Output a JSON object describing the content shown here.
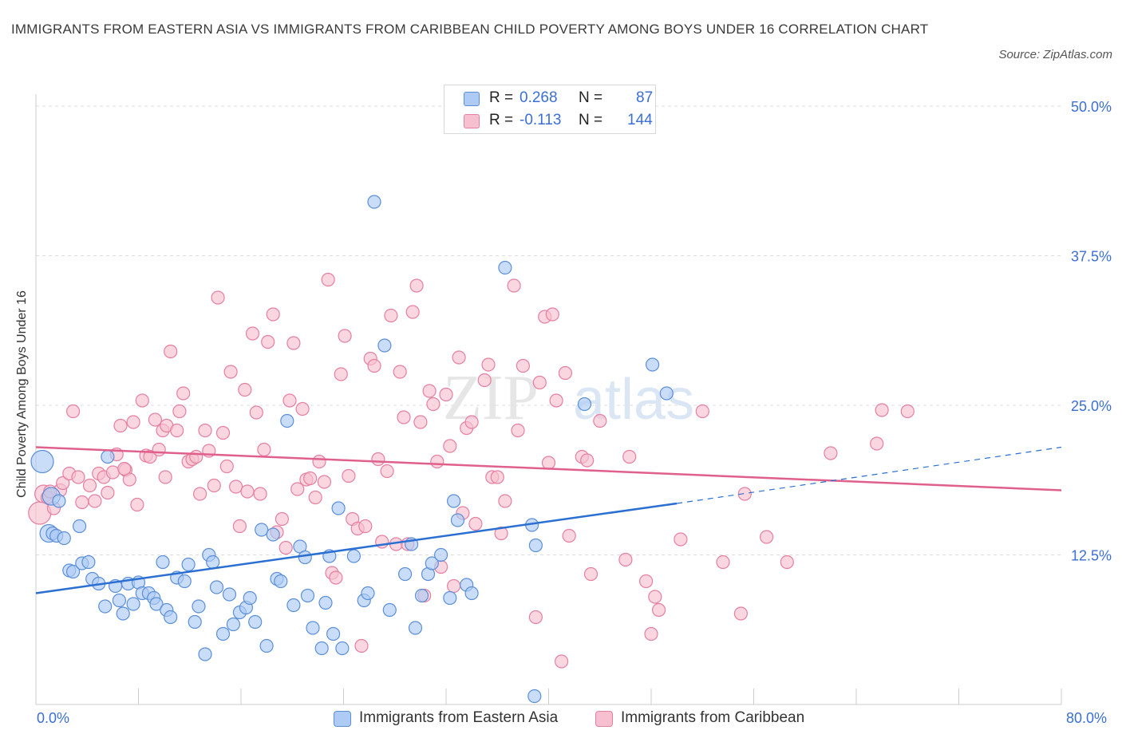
{
  "header": {
    "title": "IMMIGRANTS FROM EASTERN ASIA VS IMMIGRANTS FROM CARIBBEAN CHILD POVERTY AMONG BOYS UNDER 16 CORRELATION CHART",
    "source": "Source: ZipAtlas.com"
  },
  "watermark": {
    "zip": "ZIP",
    "atlas": "atlas"
  },
  "legend": {
    "r_label": "R =",
    "n_label": "N =",
    "series_a": {
      "r": "0.268",
      "n": "87"
    },
    "series_b": {
      "r": "-0.113",
      "n": "144"
    }
  },
  "colors": {
    "blue_fill": "#aecbf5",
    "blue_stroke": "#5b8fd9",
    "blue_line": "#2a6fd1",
    "pink_fill": "#f7c0d0",
    "pink_stroke": "#e67fa0",
    "pink_line": "#e0608c",
    "grid": "#dddddd",
    "axis_text": "#3b6fd6"
  },
  "chart_data": {
    "type": "scatter",
    "title": "IMMIGRANTS FROM EASTERN ASIA VS IMMIGRANTS FROM CARIBBEAN CHILD POVERTY AMONG BOYS UNDER 16 CORRELATION CHART",
    "xlabel": "",
    "ylabel": "Child Poverty Among Boys Under 16",
    "xlim": [
      0,
      80
    ],
    "ylim": [
      0,
      50
    ],
    "x_tick_labels": [
      "0.0%",
      "80.0%"
    ],
    "y_ticks": [
      {
        "value": 12.5,
        "label": "12.5%"
      },
      {
        "value": 25.0,
        "label": "25.0%"
      },
      {
        "value": 37.5,
        "label": "37.5%"
      },
      {
        "value": 50.0,
        "label": "50.0%"
      }
    ],
    "grid": true,
    "series": [
      {
        "name": "Immigrants from Eastern Asia",
        "color": "blue",
        "R": 0.268,
        "N": 87,
        "trend": {
          "x0": 0,
          "y0": 9.3,
          "x1": 50,
          "y1": 16.8,
          "x_end_dashed": 80,
          "y_end_dashed": 21.5
        },
        "points": [
          [
            0.5,
            20.3,
            3
          ],
          [
            1.0,
            14.3,
            2
          ],
          [
            1.2,
            17.4,
            2
          ],
          [
            1.3,
            14.3,
            1
          ],
          [
            1.6,
            14.1,
            1
          ],
          [
            2.2,
            13.9,
            1
          ],
          [
            3.4,
            14.9,
            1
          ],
          [
            2.6,
            11.2,
            1
          ],
          [
            2.9,
            11.1,
            1
          ],
          [
            3.6,
            11.8,
            1
          ],
          [
            4.1,
            11.9,
            1
          ],
          [
            4.4,
            10.5,
            1
          ],
          [
            4.9,
            10.1,
            1
          ],
          [
            5.4,
            8.2,
            1
          ],
          [
            5.6,
            20.7,
            1
          ],
          [
            6.2,
            9.9,
            1
          ],
          [
            6.5,
            8.7,
            1
          ],
          [
            6.8,
            7.6,
            1
          ],
          [
            7.2,
            10.1,
            1
          ],
          [
            7.6,
            8.4,
            1
          ],
          [
            8.0,
            10.2,
            1
          ],
          [
            8.3,
            9.3,
            1
          ],
          [
            8.8,
            9.3,
            1
          ],
          [
            9.2,
            8.9,
            1
          ],
          [
            9.4,
            8.4,
            1
          ],
          [
            9.9,
            11.9,
            1
          ],
          [
            10.2,
            7.9,
            1
          ],
          [
            10.5,
            7.3,
            1
          ],
          [
            11.0,
            10.6,
            1
          ],
          [
            11.6,
            10.3,
            1
          ],
          [
            11.9,
            11.7,
            1
          ],
          [
            12.4,
            6.9,
            1
          ],
          [
            12.7,
            8.2,
            1
          ],
          [
            13.2,
            4.2,
            1
          ],
          [
            13.5,
            12.5,
            1
          ],
          [
            13.8,
            11.9,
            1
          ],
          [
            14.1,
            9.8,
            1
          ],
          [
            14.6,
            5.9,
            1
          ],
          [
            15.1,
            9.2,
            1
          ],
          [
            15.4,
            6.7,
            1
          ],
          [
            15.9,
            7.7,
            1
          ],
          [
            16.4,
            8.1,
            1
          ],
          [
            16.7,
            8.9,
            1
          ],
          [
            17.1,
            6.9,
            1
          ],
          [
            17.6,
            14.6,
            1
          ],
          [
            18.0,
            4.9,
            1
          ],
          [
            18.5,
            14.2,
            1
          ],
          [
            18.8,
            10.5,
            1
          ],
          [
            19.1,
            10.3,
            1
          ],
          [
            19.6,
            23.7,
            1
          ],
          [
            20.1,
            8.3,
            1
          ],
          [
            20.6,
            13.2,
            1
          ],
          [
            21.0,
            12.3,
            1
          ],
          [
            21.2,
            9.1,
            1
          ],
          [
            21.6,
            6.4,
            1
          ],
          [
            22.3,
            4.7,
            1
          ],
          [
            22.6,
            8.5,
            1
          ],
          [
            22.9,
            12.4,
            1
          ],
          [
            23.2,
            5.9,
            1
          ],
          [
            23.6,
            16.4,
            1
          ],
          [
            23.9,
            4.7,
            1
          ],
          [
            24.8,
            12.4,
            1
          ],
          [
            25.6,
            8.7,
            1
          ],
          [
            25.9,
            9.3,
            1
          ],
          [
            26.4,
            42.0,
            1
          ],
          [
            27.2,
            30.0,
            1
          ],
          [
            27.6,
            7.9,
            1
          ],
          [
            28.8,
            10.9,
            1
          ],
          [
            29.3,
            13.4,
            1
          ],
          [
            29.6,
            6.4,
            1
          ],
          [
            30.1,
            9.1,
            1
          ],
          [
            30.6,
            10.9,
            1
          ],
          [
            30.9,
            11.8,
            1
          ],
          [
            31.6,
            12.5,
            1
          ],
          [
            32.3,
            8.9,
            1
          ],
          [
            32.6,
            17.0,
            1
          ],
          [
            32.9,
            15.4,
            1
          ],
          [
            33.6,
            10.0,
            1
          ],
          [
            34.0,
            9.3,
            1
          ],
          [
            36.6,
            36.5,
            1
          ],
          [
            38.7,
            15.0,
            1
          ],
          [
            39.0,
            13.3,
            1
          ],
          [
            38.9,
            0.7,
            1
          ],
          [
            42.8,
            25.1,
            1
          ],
          [
            48.1,
            28.4,
            1
          ],
          [
            49.2,
            26.0,
            1
          ],
          [
            1.8,
            17.0,
            1
          ]
        ]
      },
      {
        "name": "Immigrants from Caribbean",
        "color": "pink",
        "R": -0.113,
        "N": 144,
        "trend": {
          "x0": 0,
          "y0": 21.5,
          "x1": 80,
          "y1": 17.9
        },
        "points": [
          [
            0.3,
            16.0,
            3
          ],
          [
            0.6,
            17.6,
            2
          ],
          [
            0.9,
            17.3,
            1
          ],
          [
            1.4,
            16.4,
            1
          ],
          [
            1.9,
            17.9,
            1
          ],
          [
            2.1,
            18.5,
            1
          ],
          [
            2.6,
            19.3,
            1
          ],
          [
            2.9,
            24.5,
            1
          ],
          [
            3.3,
            19.0,
            1
          ],
          [
            3.6,
            16.9,
            1
          ],
          [
            4.2,
            18.3,
            1
          ],
          [
            4.6,
            17.0,
            1
          ],
          [
            4.9,
            19.3,
            1
          ],
          [
            5.3,
            19.0,
            1
          ],
          [
            5.6,
            17.7,
            1
          ],
          [
            6.0,
            19.4,
            1
          ],
          [
            6.3,
            20.9,
            1
          ],
          [
            6.6,
            23.3,
            1
          ],
          [
            7.0,
            19.6,
            1
          ],
          [
            7.3,
            18.8,
            1
          ],
          [
            7.6,
            23.6,
            1
          ],
          [
            7.9,
            16.7,
            1
          ],
          [
            8.3,
            25.4,
            1
          ],
          [
            8.6,
            20.8,
            1
          ],
          [
            8.9,
            20.7,
            1
          ],
          [
            9.3,
            23.8,
            1
          ],
          [
            9.6,
            21.3,
            1
          ],
          [
            9.9,
            22.9,
            1
          ],
          [
            10.2,
            23.3,
            1
          ],
          [
            10.1,
            19.0,
            1
          ],
          [
            10.5,
            29.5,
            1
          ],
          [
            11.0,
            22.9,
            1
          ],
          [
            11.2,
            24.5,
            1
          ],
          [
            11.5,
            26.0,
            1
          ],
          [
            11.9,
            20.3,
            1
          ],
          [
            12.2,
            20.5,
            1
          ],
          [
            12.5,
            20.7,
            1
          ],
          [
            12.8,
            17.6,
            1
          ],
          [
            13.2,
            22.9,
            1
          ],
          [
            13.5,
            21.2,
            1
          ],
          [
            13.9,
            18.3,
            1
          ],
          [
            14.2,
            34.0,
            1
          ],
          [
            14.6,
            22.7,
            1
          ],
          [
            14.9,
            19.9,
            1
          ],
          [
            15.2,
            27.8,
            1
          ],
          [
            15.6,
            18.2,
            1
          ],
          [
            15.9,
            14.9,
            1
          ],
          [
            16.3,
            26.3,
            1
          ],
          [
            16.5,
            17.8,
            1
          ],
          [
            16.9,
            31.0,
            1
          ],
          [
            17.2,
            24.4,
            1
          ],
          [
            17.5,
            17.6,
            1
          ],
          [
            17.8,
            21.3,
            1
          ],
          [
            18.1,
            30.3,
            1
          ],
          [
            18.5,
            32.6,
            1
          ],
          [
            18.8,
            14.4,
            1
          ],
          [
            19.2,
            15.5,
            1
          ],
          [
            19.5,
            13.1,
            1
          ],
          [
            19.8,
            25.4,
            1
          ],
          [
            20.1,
            30.2,
            1
          ],
          [
            20.4,
            18.0,
            1
          ],
          [
            20.8,
            24.7,
            1
          ],
          [
            21.1,
            18.8,
            1
          ],
          [
            21.4,
            18.9,
            1
          ],
          [
            21.8,
            17.3,
            1
          ],
          [
            22.1,
            20.3,
            1
          ],
          [
            22.5,
            18.6,
            1
          ],
          [
            22.8,
            35.5,
            1
          ],
          [
            23.1,
            11.0,
            1
          ],
          [
            23.4,
            10.6,
            1
          ],
          [
            23.8,
            27.6,
            1
          ],
          [
            24.1,
            30.8,
            1
          ],
          [
            24.4,
            19.1,
            1
          ],
          [
            24.7,
            15.5,
            1
          ],
          [
            25.1,
            14.7,
            1
          ],
          [
            25.4,
            4.9,
            1
          ],
          [
            25.7,
            14.9,
            1
          ],
          [
            26.1,
            28.9,
            1
          ],
          [
            26.4,
            28.3,
            1
          ],
          [
            26.7,
            20.5,
            1
          ],
          [
            27.0,
            13.6,
            1
          ],
          [
            27.4,
            19.5,
            1
          ],
          [
            27.7,
            32.5,
            1
          ],
          [
            28.1,
            13.4,
            1
          ],
          [
            28.4,
            27.8,
            1
          ],
          [
            28.7,
            24.0,
            1
          ],
          [
            29.0,
            13.4,
            1
          ],
          [
            29.4,
            32.8,
            1
          ],
          [
            29.7,
            35.0,
            1
          ],
          [
            30.0,
            23.6,
            1
          ],
          [
            30.3,
            9.1,
            1
          ],
          [
            30.7,
            26.2,
            1
          ],
          [
            31.0,
            25.1,
            1
          ],
          [
            31.3,
            20.3,
            1
          ],
          [
            31.6,
            11.5,
            1
          ],
          [
            32.0,
            25.9,
            1
          ],
          [
            32.3,
            21.6,
            1
          ],
          [
            32.6,
            9.9,
            1
          ],
          [
            33.0,
            29.0,
            1
          ],
          [
            33.3,
            16.0,
            1
          ],
          [
            33.6,
            23.1,
            1
          ],
          [
            34.0,
            23.6,
            1
          ],
          [
            34.3,
            15.1,
            1
          ],
          [
            35.0,
            27.1,
            1
          ],
          [
            35.3,
            28.4,
            1
          ],
          [
            35.6,
            19.0,
            1
          ],
          [
            36.0,
            19.0,
            1
          ],
          [
            36.3,
            14.3,
            1
          ],
          [
            36.6,
            17.0,
            1
          ],
          [
            37.3,
            35.0,
            1
          ],
          [
            37.6,
            22.9,
            1
          ],
          [
            38.0,
            28.3,
            1
          ],
          [
            39.3,
            26.9,
            1
          ],
          [
            39.0,
            7.3,
            1
          ],
          [
            39.7,
            32.4,
            1
          ],
          [
            40.0,
            20.2,
            1
          ],
          [
            40.3,
            32.6,
            1
          ],
          [
            40.6,
            25.4,
            1
          ],
          [
            41.0,
            3.6,
            1
          ],
          [
            41.3,
            27.7,
            1
          ],
          [
            41.6,
            14.1,
            1
          ],
          [
            42.6,
            20.7,
            1
          ],
          [
            43.0,
            20.4,
            1
          ],
          [
            43.3,
            10.9,
            1
          ],
          [
            44.0,
            23.7,
            1
          ],
          [
            46.0,
            12.1,
            1
          ],
          [
            46.3,
            20.7,
            1
          ],
          [
            47.6,
            10.3,
            1
          ],
          [
            48.0,
            5.9,
            1
          ],
          [
            48.3,
            9.0,
            1
          ],
          [
            48.6,
            7.9,
            1
          ],
          [
            50.3,
            13.8,
            1
          ],
          [
            52.0,
            24.5,
            1
          ],
          [
            53.6,
            11.9,
            1
          ],
          [
            55.0,
            7.6,
            1
          ],
          [
            55.3,
            17.6,
            1
          ],
          [
            57.0,
            14.0,
            1
          ],
          [
            58.6,
            11.9,
            1
          ],
          [
            62.0,
            21.0,
            1
          ],
          [
            65.6,
            21.8,
            1
          ],
          [
            66.0,
            24.6,
            1
          ],
          [
            68.0,
            24.5,
            1
          ],
          [
            1.1,
            17.8,
            1
          ],
          [
            6.9,
            19.7,
            1
          ]
        ]
      }
    ]
  },
  "bottom_legend": {
    "series_a": "Immigrants from Eastern Asia",
    "series_b": "Immigrants from Caribbean"
  }
}
